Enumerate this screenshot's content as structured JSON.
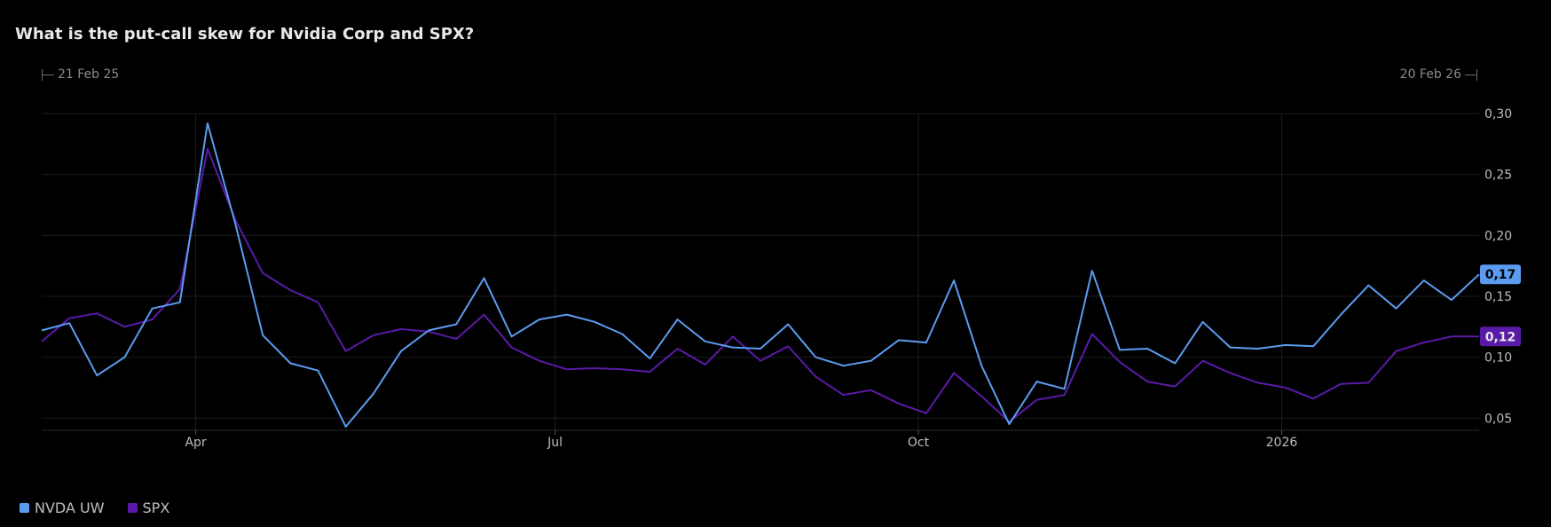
{
  "title": "What is the put-call skew for Nvidia Corp and SPX?",
  "range": {
    "start": "21 Feb 25",
    "end": "20 Feb 26"
  },
  "colors": {
    "nvda": "#5b9cf0",
    "spx": "#5a1aa8",
    "grid": "#1c1c1c",
    "axis": "#2a2a2a"
  },
  "chart_data": {
    "type": "line",
    "x": [
      "2025-02-21",
      "2025-02-28",
      "2025-03-07",
      "2025-03-14",
      "2025-03-21",
      "2025-03-28",
      "2025-04-04",
      "2025-04-11",
      "2025-04-18",
      "2025-04-25",
      "2025-05-02",
      "2025-05-09",
      "2025-05-16",
      "2025-05-23",
      "2025-05-30",
      "2025-06-06",
      "2025-06-13",
      "2025-06-20",
      "2025-06-27",
      "2025-07-04",
      "2025-07-11",
      "2025-07-18",
      "2025-07-25",
      "2025-08-01",
      "2025-08-08",
      "2025-08-15",
      "2025-08-22",
      "2025-08-29",
      "2025-09-05",
      "2025-09-12",
      "2025-09-19",
      "2025-09-26",
      "2025-10-03",
      "2025-10-10",
      "2025-10-17",
      "2025-10-24",
      "2025-10-31",
      "2025-11-07",
      "2025-11-14",
      "2025-11-21",
      "2025-11-28",
      "2025-12-05",
      "2025-12-12",
      "2025-12-19",
      "2025-12-26",
      "2026-01-02",
      "2026-01-09",
      "2026-01-16",
      "2026-01-23",
      "2026-01-30",
      "2026-02-06",
      "2026-02-13",
      "2026-02-20"
    ],
    "series": [
      {
        "name": "NVDA UW",
        "values": [
          0.122,
          0.128,
          0.085,
          0.1,
          0.14,
          0.145,
          0.292,
          0.21,
          0.118,
          0.095,
          0.089,
          0.043,
          0.07,
          0.105,
          0.122,
          0.127,
          0.165,
          0.117,
          0.131,
          0.135,
          0.129,
          0.119,
          0.099,
          0.131,
          0.113,
          0.108,
          0.107,
          0.127,
          0.1,
          0.093,
          0.097,
          0.114,
          0.112,
          0.163,
          0.093,
          0.045,
          0.08,
          0.074,
          0.171,
          0.106,
          0.107,
          0.095,
          0.129,
          0.108,
          0.107,
          0.11,
          0.109,
          0.135,
          0.159,
          0.14,
          0.163,
          0.147,
          0.168
        ]
      },
      {
        "name": "SPX",
        "values": [
          0.113,
          0.132,
          0.136,
          0.125,
          0.131,
          0.156,
          0.271,
          0.213,
          0.169,
          0.155,
          0.145,
          0.105,
          0.118,
          0.123,
          0.121,
          0.115,
          0.135,
          0.108,
          0.097,
          0.09,
          0.091,
          0.09,
          0.088,
          0.107,
          0.094,
          0.117,
          0.097,
          0.109,
          0.084,
          0.069,
          0.073,
          0.062,
          0.054,
          0.087,
          0.068,
          0.047,
          0.065,
          0.069,
          0.119,
          0.096,
          0.08,
          0.076,
          0.097,
          0.087,
          0.079,
          0.075,
          0.066,
          0.078,
          0.079,
          0.105,
          0.112,
          0.117,
          0.117
        ]
      }
    ],
    "last_labels": [
      "0,17",
      "0,12"
    ],
    "x_ticks": [
      {
        "label": "Apr",
        "date": "2025-04-01"
      },
      {
        "label": "Jul",
        "date": "2025-07-01"
      },
      {
        "label": "Oct",
        "date": "2025-10-01"
      },
      {
        "label": "2026",
        "date": "2026-01-01"
      }
    ],
    "y_ticks": [
      {
        "value": 0.3,
        "label": "0,30"
      },
      {
        "value": 0.25,
        "label": "0,25"
      },
      {
        "value": 0.2,
        "label": "0,20"
      },
      {
        "value": 0.15,
        "label": "0,15"
      },
      {
        "value": 0.1,
        "label": "0,10"
      },
      {
        "value": 0.05,
        "label": "0,05"
      }
    ],
    "ylim": [
      0.04,
      0.3
    ],
    "xlim": [
      "2025-02-21",
      "2026-02-20"
    ],
    "grid": true,
    "legend_position": "bottom-left"
  }
}
